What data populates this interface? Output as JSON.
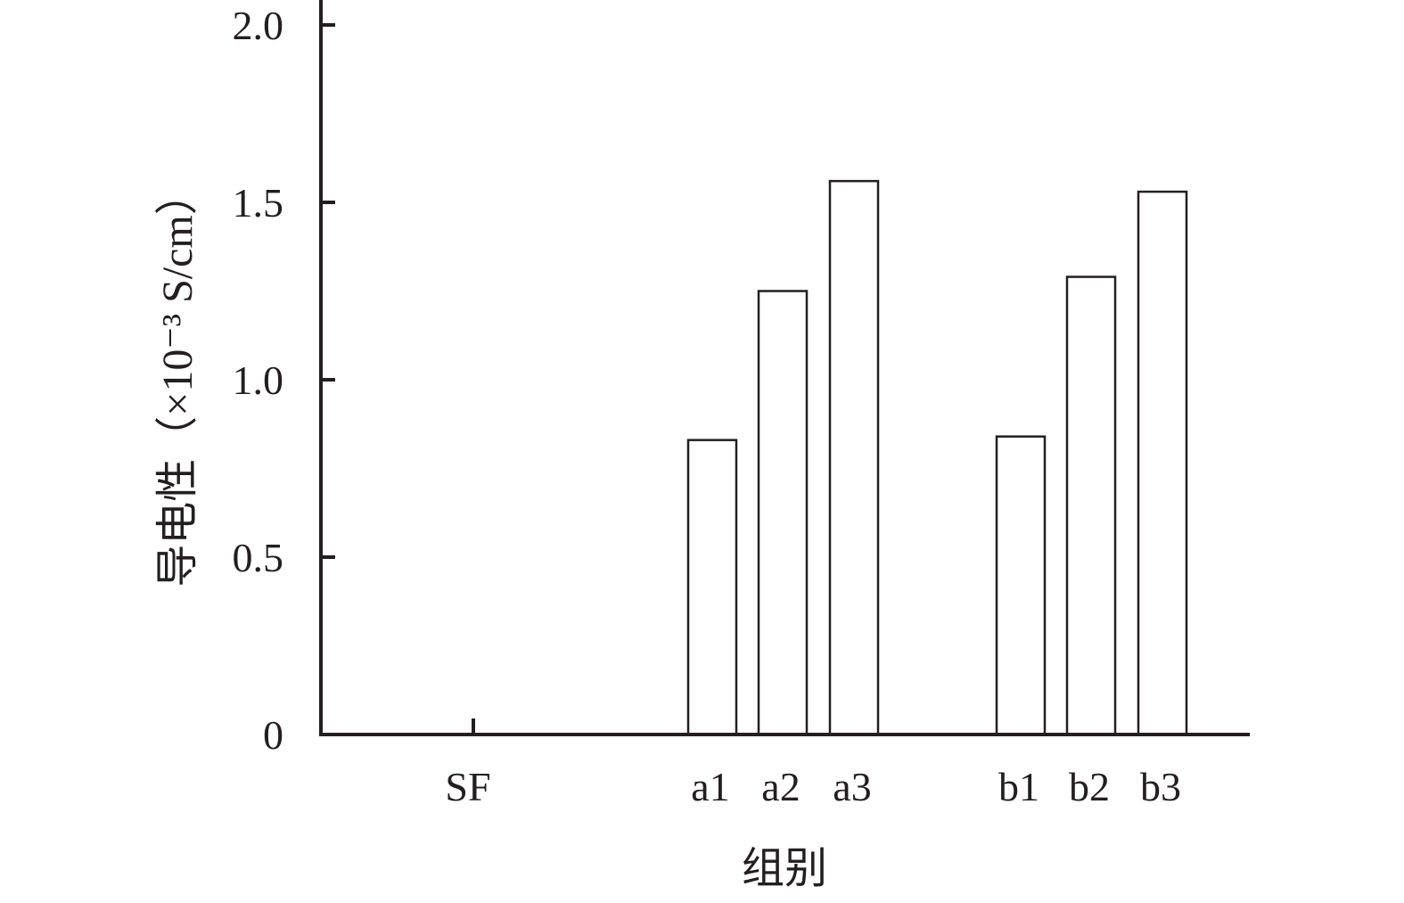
{
  "chart_data": {
    "type": "bar",
    "categories": [
      "SF",
      "a1",
      "a2",
      "a3",
      "b1",
      "b2",
      "b3"
    ],
    "values": [
      0,
      0.83,
      1.25,
      1.56,
      0.84,
      1.29,
      1.53
    ],
    "xlabel": "组别",
    "ylabel": "导电性（×10⁻³ S/cm）",
    "ylim": [
      0,
      2.0
    ],
    "yticks": [
      0,
      0.5,
      1.0,
      1.5,
      2.0
    ],
    "ytick_labels": [
      "0",
      "0.5",
      "1.0",
      "1.5",
      "2.0"
    ],
    "grid": false,
    "bar_fill": "#ffffff",
    "bar_stroke": "#231f20"
  }
}
